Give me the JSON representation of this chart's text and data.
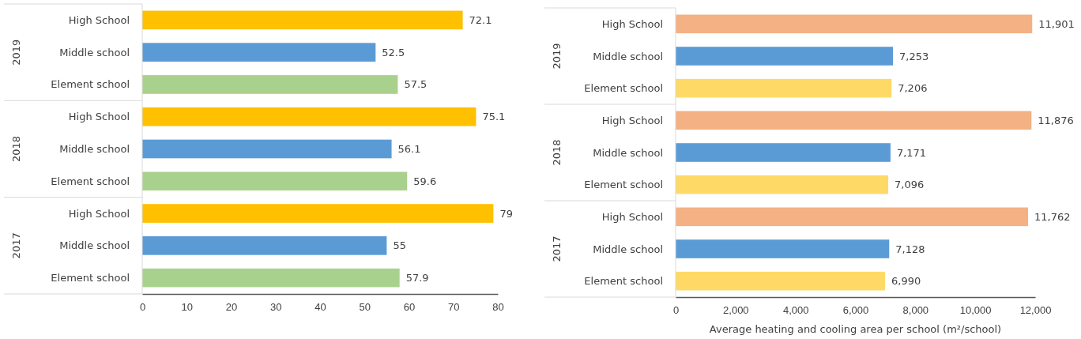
{
  "chart_data": [
    {
      "type": "bar",
      "orientation": "horizontal",
      "categories": [
        "High School",
        "Middle school",
        "Element school",
        "High School",
        "Middle school",
        "Element school",
        "High School",
        "Middle school",
        "Element school"
      ],
      "values": [
        72.1,
        52.5,
        57.5,
        75.1,
        56.1,
        59.6,
        79,
        55,
        57.9
      ],
      "colors": [
        "#ffc000",
        "#5b9bd5",
        "#a9d18e",
        "#ffc000",
        "#5b9bd5",
        "#a9d18e",
        "#ffc000",
        "#5b9bd5",
        "#a9d18e"
      ],
      "annotations": [
        "2019",
        "2018",
        "2017"
      ],
      "xlim": [
        0,
        80
      ],
      "xticks": [
        0,
        10,
        20,
        30,
        40,
        50,
        60,
        70,
        80
      ],
      "data_labels": true,
      "grid": false
    },
    {
      "type": "bar",
      "orientation": "horizontal",
      "categories": [
        "High School",
        "Middle school",
        "Element school",
        "High School",
        "Middle school",
        "Element school",
        "High School",
        "Middle school",
        "Element school"
      ],
      "values": [
        11901,
        7253,
        7206,
        11876,
        7171,
        7096,
        11762,
        7128,
        6990
      ],
      "value_labels": [
        "11,901",
        "7,253",
        "7,206",
        "11,876",
        "7,171",
        "7,096",
        "11,762",
        "7,128",
        "6,990"
      ],
      "colors": [
        "#f4b183",
        "#5b9bd5",
        "#ffd966",
        "#f4b183",
        "#5b9bd5",
        "#ffd966",
        "#f4b183",
        "#5b9bd5",
        "#ffd966"
      ],
      "annotations": [
        "2019",
        "2018",
        "2017"
      ],
      "xlabel": "Average heating and cooling area per school (m²/school)",
      "xlim": [
        0,
        12000
      ],
      "xticks": [
        0,
        {
          "value": 2000,
          "label": "2,000"
        },
        {
          "value": 4000,
          "label": "4,000"
        },
        {
          "value": 6000,
          "label": "6,000"
        },
        {
          "value": 8000,
          "label": "8,000"
        },
        {
          "value": 10000,
          "label": "10,000"
        },
        {
          "value": 12000,
          "label": "12,000"
        }
      ],
      "grid": false
    }
  ]
}
